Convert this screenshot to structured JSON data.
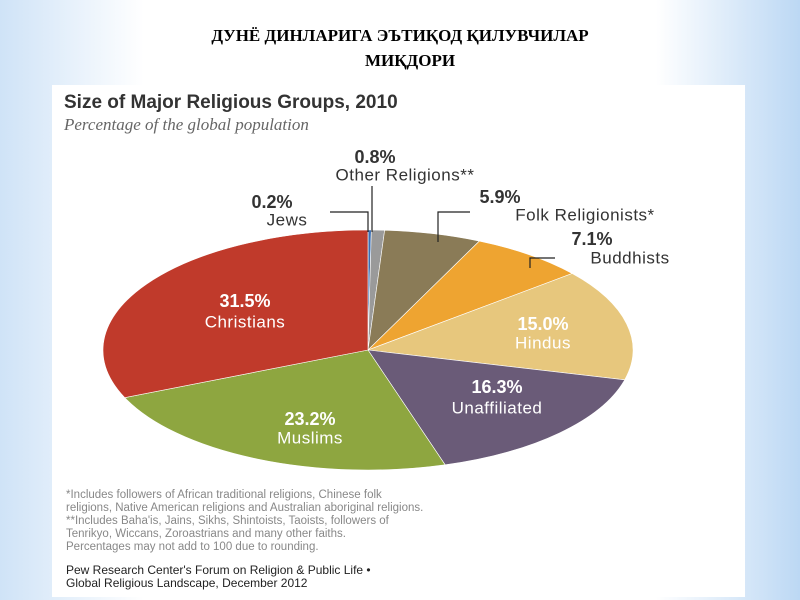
{
  "slide_title": [
    "ДУНЁ ДИНЛАРИГА ЭЪТИҚОД ҚИЛУВЧИЛАР",
    "МИҚДОРИ"
  ],
  "chart_data": {
    "type": "pie",
    "title": "Size of Major Religious Groups, 2010",
    "subtitle": "Percentage of the global population",
    "categories": [
      "Jews",
      "Other Religions**",
      "Folk Religionists*",
      "Buddhists",
      "Hindus",
      "Unaffiliated",
      "Muslims",
      "Christians"
    ],
    "values": [
      0.2,
      0.8,
      5.9,
      7.1,
      15.0,
      16.3,
      23.2,
      31.5
    ],
    "value_labels": [
      "0.2%",
      "0.8%",
      "5.9%",
      "7.1%",
      "15.0%",
      "16.3%",
      "23.2%",
      "31.5%"
    ],
    "colors": [
      "#3b6fb3",
      "#9a9a9a",
      "#8a7b57",
      "#eea431",
      "#e7c77d",
      "#6a5b78",
      "#8ea640",
      "#c03a2b"
    ],
    "footnotes": [
      "*Includes followers of African traditional religions, Chinese folk",
      "religions, Native American religions and Australian aboriginal religions.",
      "**Includes Baha'is, Jains, Sikhs, Shintoists, Taoists, followers of",
      "Tenrikyo, Wiccans, Zoroastrians and many other faiths.",
      "Percentages may not add to 100 due to rounding."
    ],
    "source": [
      "Pew Research Center's Forum on Religion & Public Life •",
      "Global Religious Landscape, December 2012"
    ]
  }
}
